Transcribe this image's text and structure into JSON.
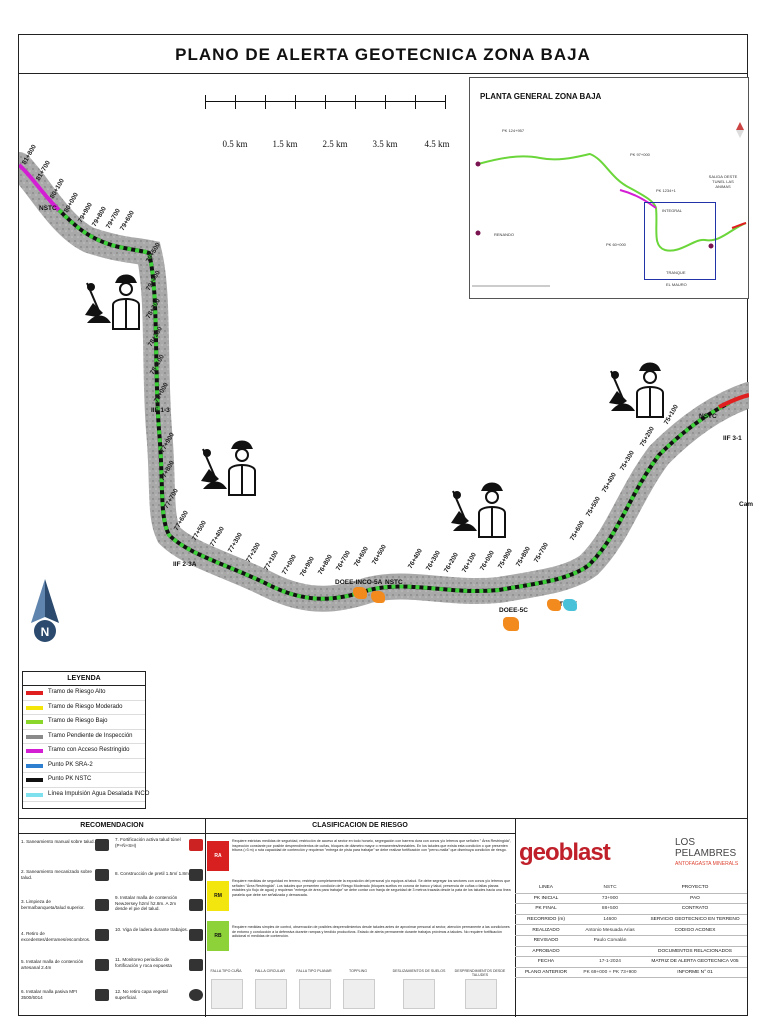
{
  "title": "PLANO DE ALERTA GEOTECNICA ZONA BAJA",
  "scale": {
    "labels": [
      "0.5 km",
      "1.5 km",
      "2.5 km",
      "3.5 km",
      "4.5 km"
    ]
  },
  "inset": {
    "title": "PLANTA GENERAL ZONA BAJA",
    "labels": [
      "PK 124+957",
      "PK 97+000",
      "PK 60+000",
      "PK 1234+1",
      "RENANDO",
      "SALIDA OESTE TUNEL LAS ANIMAS",
      "TRANQUE",
      "EL MAURO",
      "INTEGRAL"
    ]
  },
  "map": {
    "pk_labels": [
      "81+800",
      "81+700",
      "80+100",
      "80+000",
      "79+900",
      "79+800",
      "79+700",
      "79+600",
      "79+500",
      "79+400",
      "78+300",
      "78+200",
      "78+100",
      "78+000",
      "77+900",
      "77+800",
      "77+700",
      "77+600",
      "77+500",
      "77+400",
      "77+300",
      "77+200",
      "77+100",
      "77+000",
      "76+900",
      "76+800",
      "76+700",
      "76+600",
      "76+500",
      "76+400",
      "76+300",
      "76+200",
      "76+100",
      "76+000",
      "75+900",
      "75+800",
      "75+700",
      "75+600",
      "75+500",
      "75+400",
      "75+300",
      "75+200",
      "75+100"
    ],
    "markers": [
      "NSTC",
      "DOEE-INCO-5A",
      "NSTC",
      "DOEE-5C",
      "TIPAY",
      "IIF 2-3A",
      "IIF 3-1",
      "NSTC",
      "IIF 1-3",
      "Cam"
    ]
  },
  "legend": {
    "title": "LEYENDA",
    "items": [
      {
        "label": "Tramo de Riesgo Alto",
        "color": "#e02020"
      },
      {
        "label": "Tramo de Riesgo Moderado",
        "color": "#f5e60a"
      },
      {
        "label": "Tramo de Riesgo Bajo",
        "color": "#8bd62a"
      },
      {
        "label": "Tramo Pendiente de Inspección",
        "color": "#8a8a8a"
      },
      {
        "label": "Tramo con Acceso Restringido",
        "color": "#d41ed4"
      },
      {
        "label": "Punto PK SRA-2",
        "color": "#2f7fd1"
      },
      {
        "label": "Punto PK NSTC",
        "color": "#111111"
      },
      {
        "label": "Línea Impulsión Agua Desalada INCO",
        "color": "#7fe0ee"
      }
    ]
  },
  "recomendacion": {
    "title": "RECOMENDACION",
    "items": [
      "1. Saneamiento manual sobre talud.",
      "7. Fortificación activa talud túnel (P+Ñ+SH)",
      "2. Saneamiento mecanizado sobre talud.",
      "8. Construcción de pretil 1.5m/ 1.8m",
      "3. Limpieza de berma/banqueta/talud superior.",
      "9. Instalar malla de contención NewJersey h2m/ h2.8m. A 2m desde el pie del talud.",
      "4. Retiro de excedentes/derrames/escombros.",
      "10. Viga de ladera durante trabajos.",
      "5. Instalar malla de contención artesanal 2.4m",
      "11. Monitoreo periodico de fortificación y roca expuesta",
      "6. Instalar malla pasiva MFI 3500/6014",
      "12. No retiro capa vegetal superficial."
    ]
  },
  "clasificacion": {
    "title": "CLASIFICACION DE RIESGO",
    "levels": [
      {
        "code": "RA",
        "color": "#d92020",
        "text": "Requiere estrictas medidas de seguridad, restricción de acceso al sector en todo horario, segregación con barrera dura con conos y/o letreros que señalen \" Área Restringida\", inspección constante por posible desprendimientos de cuñas, bloques de diámetro mayor o remanentes/inestables. En los taludes que exista esta condición o que presenten triturra (>3 m) o ruta capacidad de contención y requieran \"entrega de pista para trabajar\" se debe realizar fortificación con \"perno-malla\" que disminuya condición de riesgo."
      },
      {
        "code": "RM",
        "color": "#f3e60f",
        "text": "Requiere medidas de seguridad en terreno, restringir completamente la exposición del personal y/o equipos al talud. Se debe segregar los sectores con conos y/o letreros que señalen \"Área Restringida\". Los taludes que presenten condición de Riesgo Moderado (bloques sueltos en corona de banco y talud, presencia de cuñas o fallas planas estables y/o flujo de agua) y requieran \"entrega de área para trabajar\" se debe contar con franja de seguridad de 3 metros trazada desde la pata de los taludes hacia una línea paralela que debe ser señalizada y demarcada."
      },
      {
        "code": "RB",
        "color": "#8ed23a",
        "text": "Requiere medidas simples de control, observación de posibles desprendimientos desde taludes antes de aproximar personal al sector, atención permanente a las condiciones de entorno y conducción a la defensiva durante rampas y tendido productivos. Estado de alerta permanente durante trabajos próximos a taludes. No requiere fortificación adicional ni medidas de contención."
      }
    ],
    "fallas": [
      "FALLA TIPO CUÑA",
      "FALLA CIRCULAR",
      "FALLA TIPO PLANAR",
      "TOPPLING",
      "DESLIZAMIENTOS DE SUELOS",
      "DESPRENDIMIENTOS DESDE TALUDES"
    ]
  },
  "info": {
    "brand1": "geoblast",
    "brand2": "LOS PELAMBRES",
    "brand2_sub": "ANTOFAGASTA MINERALS",
    "rows": [
      {
        "k": "LINEA",
        "v": "NSTC",
        "r": "PROYECTO"
      },
      {
        "k": "PK INICIAL",
        "v": "73+900",
        "r": "PAO"
      },
      {
        "k": "PK FINAL",
        "v": "88+500",
        "r": "CONTRATO"
      },
      {
        "k": "RECORRIDO (m)",
        "v": "14600",
        "r": "SERVICIO GEOTECNICO EN TERRENO"
      },
      {
        "k": "REALIZADO",
        "v": "Antonio Mesuada Arias",
        "r": "CODIGO ACONEX"
      },
      {
        "k": "REVISADO",
        "v": "Paulo Corvalán",
        "r": ""
      },
      {
        "k": "APROBADO",
        "v": "",
        "r": "DOCUMENTOS RELACIONADOS"
      },
      {
        "k": "FECHA",
        "v": "17-1-2024",
        "r": "MATRIZ DE ALERTA GEOTECNICA V05"
      },
      {
        "k": "PLANO ANTERIOR",
        "v": "PK 69+000 + PK 73+900",
        "r": "INFORME N° 01"
      }
    ]
  }
}
